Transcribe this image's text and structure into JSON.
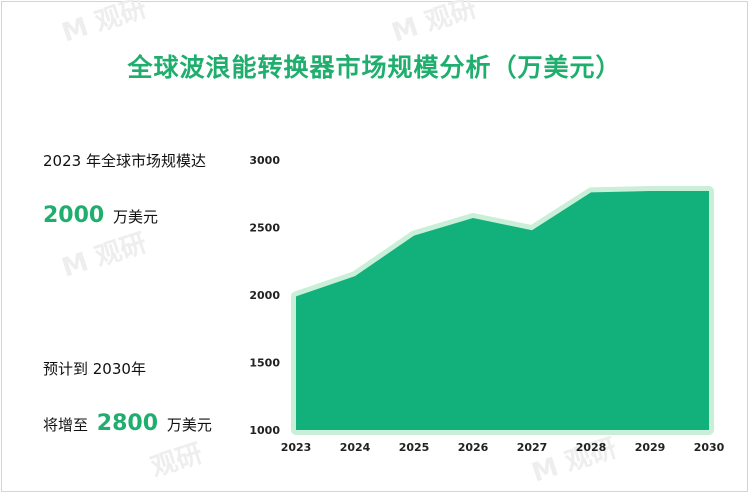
{
  "title": "全球波浪能转换器市场规模分析（万美元）",
  "left_panel": {
    "line1": "2023 年全球市场规模达",
    "value_2023": "2000",
    "unit_2023": "万美元",
    "line2": "预计到 2030年",
    "prefix_2030": "将增至",
    "value_2030": "2800",
    "unit_2030": "万美元"
  },
  "colors": {
    "accent": "#1fae6d",
    "area_fill": "#12b07a",
    "area_outline": "#c9efd9"
  },
  "chart_data": {
    "type": "area",
    "title": "全球波浪能转换器市场规模分析（万美元）",
    "x": [
      "2023",
      "2024",
      "2025",
      "2026",
      "2027",
      "2028",
      "2029",
      "2030"
    ],
    "series": [
      {
        "values": [
          1990,
          2140,
          2440,
          2570,
          2480,
          2760,
          2770,
          2770
        ]
      }
    ],
    "ylim": [
      1000,
      3000
    ],
    "yticks": [
      "1000",
      "1500",
      "2000",
      "2500",
      "3000"
    ],
    "grid": false,
    "legend": "none"
  }
}
